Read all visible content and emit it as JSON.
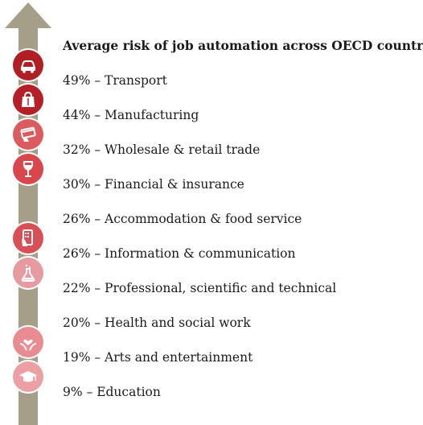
{
  "title": "Average risk of job automation across OECD countries",
  "colors": {
    "arrow": "#a59f8a",
    "icon_ring": "#ffffff"
  },
  "chart_data": {
    "type": "table",
    "title": "Average risk of job automation across OECD countries",
    "unit": "%",
    "rows": [
      {
        "value": 49,
        "sector": "Transport",
        "label": "49% – Transport",
        "icon": "car-icon",
        "color": "#b01f24"
      },
      {
        "value": 44,
        "sector": "Manufacturing",
        "label": "44% – Manufacturing",
        "icon": "shopping-bag-icon",
        "color": "#b51f28"
      },
      {
        "value": 32,
        "sector": "Wholesale & retail trade",
        "label": "32% – Wholesale & retail trade",
        "icon": "credit-card-hand-icon",
        "color": "#db5b5f"
      },
      {
        "value": 30,
        "sector": "Financial & insurance",
        "label": "30% – Financial & insurance",
        "icon": "wine-glass-icon",
        "color": "#d9474c"
      },
      {
        "value": 26,
        "sector": "Accommodation & food service",
        "label": "26% – Accommodation & food service",
        "icon": "none",
        "color": ""
      },
      {
        "value": 26,
        "sector": "Information & communication",
        "label": "26% – Information & communication",
        "icon": "smartphone-hand-icon",
        "color": "#d84f55"
      },
      {
        "value": 22,
        "sector": "Professional, scientific and technical",
        "label": "22% – Professional, scientific and technical",
        "icon": "flask-icon",
        "color": "#e79ba1"
      },
      {
        "value": 20,
        "sector": "Health and social work",
        "label": "20% – Health and social work",
        "icon": "none",
        "color": ""
      },
      {
        "value": 19,
        "sector": "Arts and entertainment",
        "label": "19% – Arts and entertainment",
        "icon": "hands-heart-icon",
        "color": "#e88c91"
      },
      {
        "value": 9,
        "sector": "Education",
        "label": "9% – Education",
        "icon": "graduation-cap-icon",
        "color": "#eda0a4"
      }
    ]
  }
}
